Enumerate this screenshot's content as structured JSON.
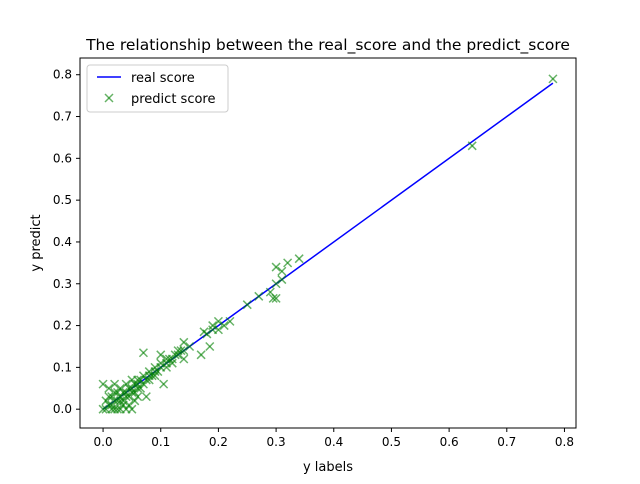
{
  "chart_data": {
    "type": "scatter",
    "title": "The relationship between the real_score and the predict_score",
    "xlabel": "y labels",
    "ylabel": "y predict",
    "xlim": [
      -0.04,
      0.82
    ],
    "ylim": [
      -0.045,
      0.84
    ],
    "xticks": [
      0.0,
      0.1,
      0.2,
      0.3,
      0.4,
      0.5,
      0.6,
      0.7,
      0.8
    ],
    "xtick_labels": [
      "0.0",
      "0.1",
      "0.2",
      "0.3",
      "0.4",
      "0.5",
      "0.6",
      "0.7",
      "0.8"
    ],
    "yticks": [
      0.0,
      0.1,
      0.2,
      0.3,
      0.4,
      0.5,
      0.6,
      0.7,
      0.8
    ],
    "ytick_labels": [
      "0.0",
      "0.1",
      "0.2",
      "0.3",
      "0.4",
      "0.5",
      "0.6",
      "0.7",
      "0.8"
    ],
    "grid": false,
    "legend": {
      "location": "upper-left",
      "entries": [
        {
          "label": "real score",
          "marker": "line",
          "color": "#0000ff"
        },
        {
          "label": "predict score",
          "marker": "x",
          "color": "#008000"
        }
      ]
    },
    "series": [
      {
        "name": "real score",
        "type": "line",
        "color": "#0000ff",
        "x": [
          0.0,
          0.78
        ],
        "y": [
          0.0,
          0.78
        ]
      },
      {
        "name": "predict score",
        "type": "scatter",
        "marker": "x",
        "color": "#008000",
        "opacity": 0.6,
        "points": [
          [
            0.78,
            0.79
          ],
          [
            0.64,
            0.63
          ],
          [
            0.34,
            0.36
          ],
          [
            0.32,
            0.35
          ],
          [
            0.3,
            0.34
          ],
          [
            0.31,
            0.33
          ],
          [
            0.31,
            0.31
          ],
          [
            0.3,
            0.3
          ],
          [
            0.29,
            0.28
          ],
          [
            0.295,
            0.265
          ],
          [
            0.3,
            0.265
          ],
          [
            0.27,
            0.27
          ],
          [
            0.25,
            0.25
          ],
          [
            0.22,
            0.21
          ],
          [
            0.21,
            0.2
          ],
          [
            0.2,
            0.19
          ],
          [
            0.19,
            0.19
          ],
          [
            0.18,
            0.18
          ],
          [
            0.175,
            0.185
          ],
          [
            0.185,
            0.15
          ],
          [
            0.17,
            0.13
          ],
          [
            0.2,
            0.21
          ],
          [
            0.19,
            0.2
          ],
          [
            0.15,
            0.15
          ],
          [
            0.14,
            0.16
          ],
          [
            0.14,
            0.14
          ],
          [
            0.13,
            0.13
          ],
          [
            0.135,
            0.14
          ],
          [
            0.12,
            0.12
          ],
          [
            0.125,
            0.13
          ],
          [
            0.11,
            0.11
          ],
          [
            0.115,
            0.12
          ],
          [
            0.14,
            0.12
          ],
          [
            0.1,
            0.13
          ],
          [
            0.1,
            0.1
          ],
          [
            0.105,
            0.06
          ],
          [
            0.095,
            0.09
          ],
          [
            0.11,
            0.1
          ],
          [
            0.09,
            0.09
          ],
          [
            0.085,
            0.08
          ],
          [
            0.08,
            0.08
          ],
          [
            0.09,
            0.1
          ],
          [
            0.07,
            0.135
          ],
          [
            0.08,
            0.09
          ],
          [
            0.075,
            0.07
          ],
          [
            0.07,
            0.06
          ],
          [
            0.065,
            0.07
          ],
          [
            0.075,
            0.03
          ],
          [
            0.06,
            0.06
          ],
          [
            0.06,
            0.05
          ],
          [
            0.055,
            0.06
          ],
          [
            0.05,
            0.05
          ],
          [
            0.05,
            0.04
          ],
          [
            0.045,
            0.05
          ],
          [
            0.04,
            0.04
          ],
          [
            0.04,
            0.03
          ],
          [
            0.035,
            0.04
          ],
          [
            0.03,
            0.03
          ],
          [
            0.03,
            0.05
          ],
          [
            0.025,
            0.02
          ],
          [
            0.02,
            0.02
          ],
          [
            0.02,
            0.06
          ],
          [
            0.015,
            0.01
          ],
          [
            0.01,
            0.01
          ],
          [
            0.005,
            0.0
          ],
          [
            0.0,
            0.0
          ],
          [
            0.0,
            0.06
          ],
          [
            0.01,
            0.03
          ],
          [
            0.02,
            0.0
          ],
          [
            0.03,
            0.0
          ],
          [
            0.04,
            0.0
          ],
          [
            0.05,
            0.0
          ],
          [
            0.045,
            0.01
          ],
          [
            0.035,
            0.01
          ],
          [
            0.025,
            0.04
          ],
          [
            0.015,
            0.03
          ],
          [
            0.055,
            0.02
          ],
          [
            0.065,
            0.05
          ],
          [
            0.06,
            0.03
          ],
          [
            0.01,
            0.05
          ],
          [
            0.005,
            0.02
          ],
          [
            0.02,
            0.04
          ],
          [
            0.03,
            0.02
          ],
          [
            0.04,
            0.06
          ],
          [
            0.05,
            0.07
          ],
          [
            0.06,
            0.07
          ],
          [
            0.07,
            0.08
          ],
          [
            0.08,
            0.07
          ],
          [
            0.09,
            0.08
          ],
          [
            0.1,
            0.11
          ],
          [
            0.11,
            0.12
          ],
          [
            0.12,
            0.11
          ],
          [
            0.13,
            0.14
          ],
          [
            0.035,
            0.02
          ],
          [
            0.045,
            0.03
          ],
          [
            0.055,
            0.04
          ],
          [
            0.025,
            0.0
          ],
          [
            0.015,
            0.0
          ]
        ]
      }
    ]
  }
}
